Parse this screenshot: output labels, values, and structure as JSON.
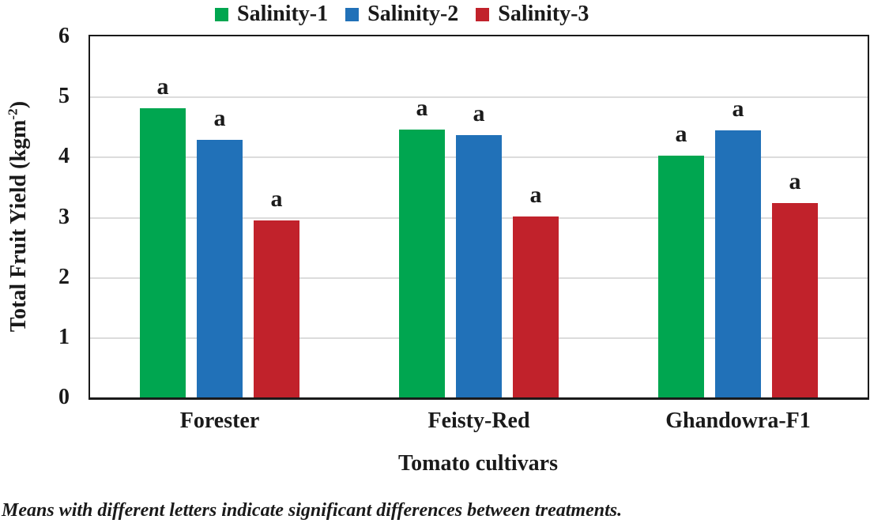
{
  "chart_data": {
    "type": "bar",
    "categories": [
      "Forester",
      "Feisty-Red",
      "Ghandowra-F1"
    ],
    "series": [
      {
        "name": "Salinity-1",
        "color": "#00A650",
        "values": [
          4.8,
          4.45,
          4.02
        ]
      },
      {
        "name": "Salinity-2",
        "color": "#2171B8",
        "values": [
          4.28,
          4.36,
          4.44
        ]
      },
      {
        "name": "Salinity-3",
        "color": "#C1222B",
        "values": [
          2.94,
          3.01,
          3.23
        ]
      }
    ],
    "sig_letters": [
      [
        "a",
        "a",
        "a"
      ],
      [
        "a",
        "a",
        "a"
      ],
      [
        "a",
        "a",
        "a"
      ]
    ],
    "xlabel": "Tomato cultivars",
    "ylabel": {
      "pre": "Total Fruit Yield (kgm",
      "sup": "-2",
      "post": ")"
    },
    "ylim": [
      0,
      6
    ],
    "ytick_step": 1,
    "yticks": [
      "0",
      "1",
      "2",
      "3",
      "4",
      "5",
      "6"
    ],
    "grid": "horizontal",
    "gridline_color": "#DCDCDC",
    "axis_color": "#1a1a1a",
    "legend_position": "top"
  },
  "footnote": {
    "text": "Means with different letters indicate significant differences between treatments."
  }
}
